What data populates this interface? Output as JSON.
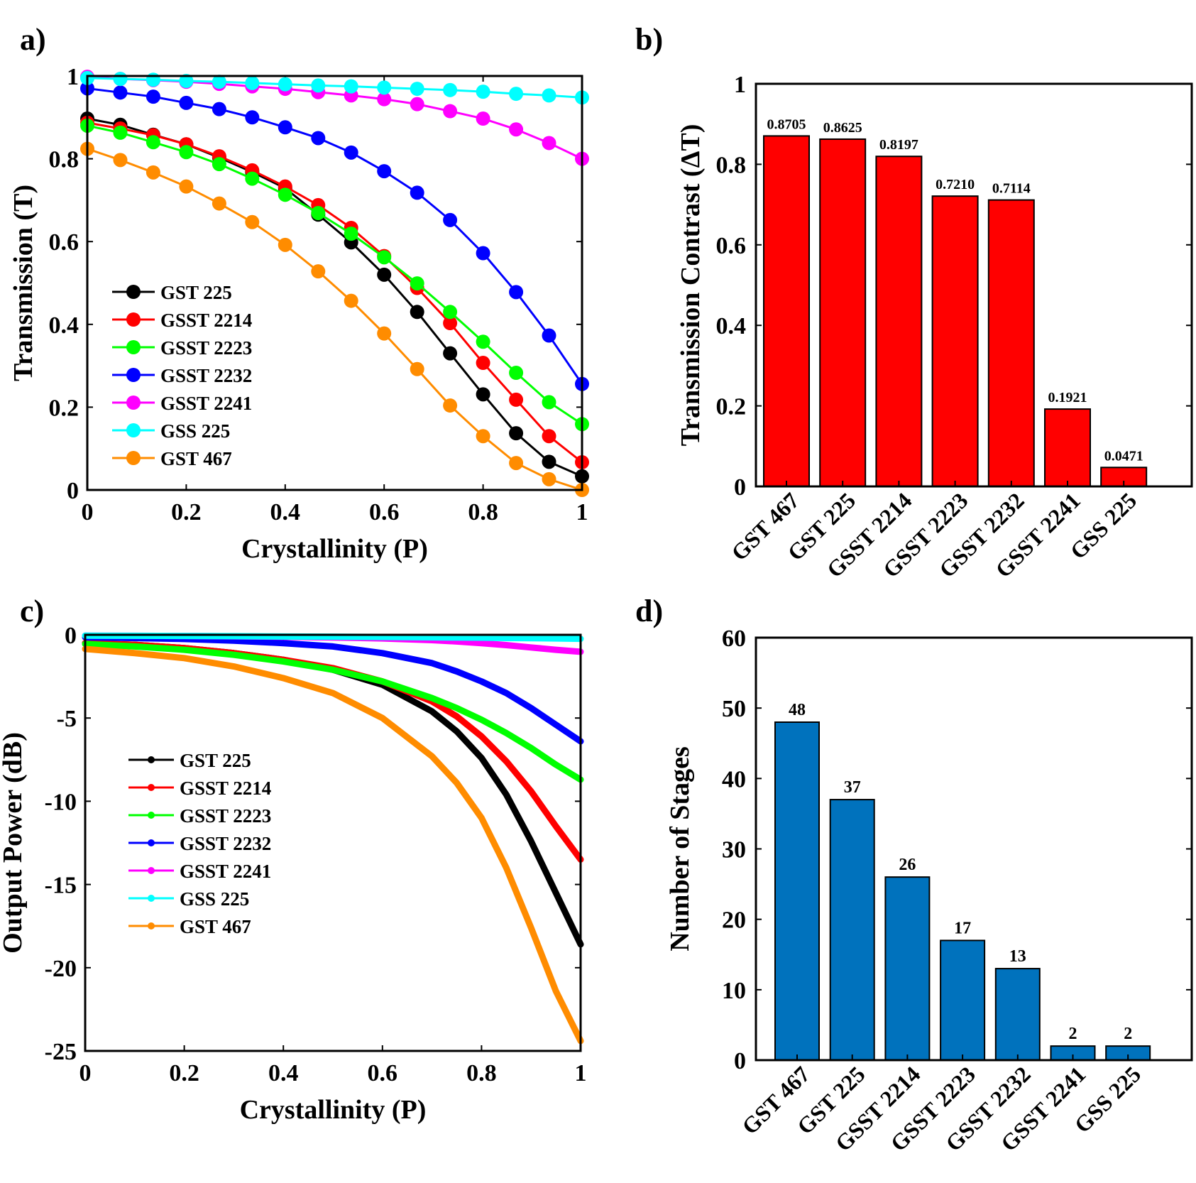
{
  "panels": {
    "a": {
      "label": "a)"
    },
    "b": {
      "label": "b)"
    },
    "c": {
      "label": "c)"
    },
    "d": {
      "label": "d)"
    }
  },
  "chart_data": [
    {
      "id": "a",
      "type": "line",
      "title": "",
      "xlabel": "Crystallinity (P)",
      "ylabel": "Transmission (T)",
      "xlim": [
        0,
        1
      ],
      "ylim": [
        0,
        1
      ],
      "xticks": [
        0,
        0.2,
        0.4,
        0.6,
        0.8,
        1
      ],
      "yticks": [
        0,
        0.2,
        0.4,
        0.6,
        0.8,
        1
      ],
      "xtick_labels": [
        "0",
        "0.2",
        "0.4",
        "0.6",
        "0.8",
        "1"
      ],
      "ytick_labels": [
        "0",
        "0.2",
        "0.4",
        "0.6",
        "0.8",
        "1"
      ],
      "legend_position": "middle-left",
      "x": [
        0,
        0.0667,
        0.1333,
        0.2,
        0.2667,
        0.3333,
        0.4,
        0.4667,
        0.5333,
        0.6,
        0.6667,
        0.7333,
        0.8,
        0.8667,
        0.9333,
        1
      ],
      "series": [
        {
          "name": "GST 225",
          "color": "#000000",
          "values": [
            0.897,
            0.882,
            0.858,
            0.835,
            0.803,
            0.768,
            0.729,
            0.665,
            0.598,
            0.52,
            0.43,
            0.33,
            0.231,
            0.137,
            0.068,
            0.033
          ]
        },
        {
          "name": "GSST 2214",
          "color": "#ff0000",
          "values": [
            0.887,
            0.873,
            0.857,
            0.835,
            0.806,
            0.772,
            0.733,
            0.688,
            0.633,
            0.565,
            0.488,
            0.403,
            0.307,
            0.218,
            0.13,
            0.067
          ]
        },
        {
          "name": "GSST 2223",
          "color": "#00ff00",
          "values": [
            0.88,
            0.863,
            0.84,
            0.816,
            0.787,
            0.752,
            0.713,
            0.669,
            0.619,
            0.562,
            0.499,
            0.43,
            0.358,
            0.283,
            0.212,
            0.159
          ]
        },
        {
          "name": "GSST 2232",
          "color": "#0000ff",
          "values": [
            0.97,
            0.96,
            0.95,
            0.935,
            0.92,
            0.9,
            0.876,
            0.85,
            0.815,
            0.77,
            0.718,
            0.652,
            0.572,
            0.478,
            0.373,
            0.256
          ]
        },
        {
          "name": "GSST 2241",
          "color": "#ff00ff",
          "values": [
            0.998,
            0.993,
            0.99,
            0.986,
            0.981,
            0.975,
            0.969,
            0.961,
            0.953,
            0.944,
            0.932,
            0.915,
            0.897,
            0.871,
            0.838,
            0.8
          ]
        },
        {
          "name": "GSS 225",
          "color": "#00ffff",
          "values": [
            0.995,
            0.993,
            0.991,
            0.988,
            0.986,
            0.983,
            0.98,
            0.977,
            0.975,
            0.972,
            0.969,
            0.966,
            0.962,
            0.957,
            0.953,
            0.948
          ]
        },
        {
          "name": "GST 467",
          "color": "#ff8c00",
          "values": [
            0.824,
            0.797,
            0.767,
            0.733,
            0.692,
            0.647,
            0.592,
            0.528,
            0.457,
            0.378,
            0.292,
            0.204,
            0.13,
            0.065,
            0.026,
            0.0
          ]
        }
      ]
    },
    {
      "id": "b",
      "type": "bar",
      "title": "",
      "xlabel": "",
      "ylabel": "Transmission Contrast (ΔT)",
      "ylim": [
        0,
        1
      ],
      "yticks": [
        0,
        0.2,
        0.4,
        0.6,
        0.8,
        1
      ],
      "ytick_labels": [
        "0",
        "0.2",
        "0.4",
        "0.6",
        "0.8",
        "1"
      ],
      "categories": [
        "GST 467",
        "GST 225",
        "GSST 2214",
        "GSST 2223",
        "GSST 2232",
        "GSST 2241",
        "GSS 225"
      ],
      "values": [
        0.8705,
        0.8625,
        0.8197,
        0.721,
        0.7114,
        0.1921,
        0.0471
      ],
      "value_labels": [
        "0.8705",
        "0.8625",
        "0.8197",
        "0.7210",
        "0.7114",
        "0.1921",
        "0.0471"
      ],
      "color": "#ff0000"
    },
    {
      "id": "c",
      "type": "line",
      "title": "",
      "xlabel": "Crystallinity (P)",
      "ylabel": "Output Power (dB)",
      "xlim": [
        0,
        1
      ],
      "ylim": [
        -25,
        0
      ],
      "xticks": [
        0,
        0.2,
        0.4,
        0.6,
        0.8,
        1
      ],
      "yticks": [
        0,
        -5,
        -10,
        -15,
        -20,
        -25
      ],
      "xtick_labels": [
        "0",
        "0.2",
        "0.4",
        "0.6",
        "0.8",
        "1"
      ],
      "ytick_labels": [
        "0",
        "-5",
        "-10",
        "-15",
        "-20",
        "-25"
      ],
      "legend_position": "middle-left",
      "x": [
        0,
        0.1,
        0.2,
        0.3,
        0.4,
        0.5,
        0.6,
        0.7,
        0.75,
        0.8,
        0.85,
        0.9,
        0.95,
        1
      ],
      "series": [
        {
          "name": "GST 225",
          "color": "#000000",
          "values": [
            -0.5,
            -0.6,
            -0.8,
            -1.1,
            -1.5,
            -2.1,
            -3.0,
            -4.6,
            -5.8,
            -7.4,
            -9.6,
            -12.4,
            -15.5,
            -18.6
          ]
        },
        {
          "name": "GSST 2214",
          "color": "#ff0000",
          "values": [
            -0.5,
            -0.6,
            -0.8,
            -1.1,
            -1.5,
            -2.0,
            -2.8,
            -4.0,
            -4.9,
            -6.1,
            -7.6,
            -9.4,
            -11.5,
            -13.5
          ]
        },
        {
          "name": "GSST 2223",
          "color": "#00ff00",
          "values": [
            -0.55,
            -0.7,
            -0.9,
            -1.2,
            -1.6,
            -2.1,
            -2.8,
            -3.8,
            -4.4,
            -5.1,
            -5.9,
            -6.8,
            -7.8,
            -8.7
          ]
        },
        {
          "name": "GSST 2232",
          "color": "#0000ff",
          "values": [
            -0.15,
            -0.2,
            -0.25,
            -0.35,
            -0.5,
            -0.7,
            -1.1,
            -1.7,
            -2.2,
            -2.8,
            -3.5,
            -4.4,
            -5.4,
            -6.4
          ]
        },
        {
          "name": "GSST 2241",
          "color": "#ff00ff",
          "values": [
            -0.05,
            -0.06,
            -0.07,
            -0.09,
            -0.12,
            -0.16,
            -0.22,
            -0.32,
            -0.4,
            -0.5,
            -0.62,
            -0.76,
            -0.9,
            -1.02
          ]
        },
        {
          "name": "GSS 225",
          "color": "#00ffff",
          "values": [
            -0.05,
            -0.06,
            -0.07,
            -0.08,
            -0.1,
            -0.11,
            -0.13,
            -0.15,
            -0.16,
            -0.17,
            -0.19,
            -0.2,
            -0.22,
            -0.24
          ]
        },
        {
          "name": "GST 467",
          "color": "#ff8c00",
          "values": [
            -0.85,
            -1.1,
            -1.4,
            -1.9,
            -2.6,
            -3.5,
            -5.0,
            -7.3,
            -8.9,
            -11.0,
            -14.0,
            -17.6,
            -21.4,
            -24.4
          ]
        }
      ]
    },
    {
      "id": "d",
      "type": "bar",
      "title": "",
      "xlabel": "",
      "ylabel": "Number of Stages",
      "ylim": [
        0,
        60
      ],
      "yticks": [
        0,
        10,
        20,
        30,
        40,
        50,
        60
      ],
      "ytick_labels": [
        "0",
        "10",
        "20",
        "30",
        "40",
        "50",
        "60"
      ],
      "categories": [
        "GST 467",
        "GST 225",
        "GSST 2214",
        "GSST 2223",
        "GSST 2232",
        "GSST 2241",
        "GSS 225"
      ],
      "values": [
        48,
        37,
        26,
        17,
        13,
        2,
        2
      ],
      "value_labels": [
        "48",
        "37",
        "26",
        "17",
        "13",
        "2",
        "2"
      ],
      "color": "#0072bd"
    }
  ]
}
